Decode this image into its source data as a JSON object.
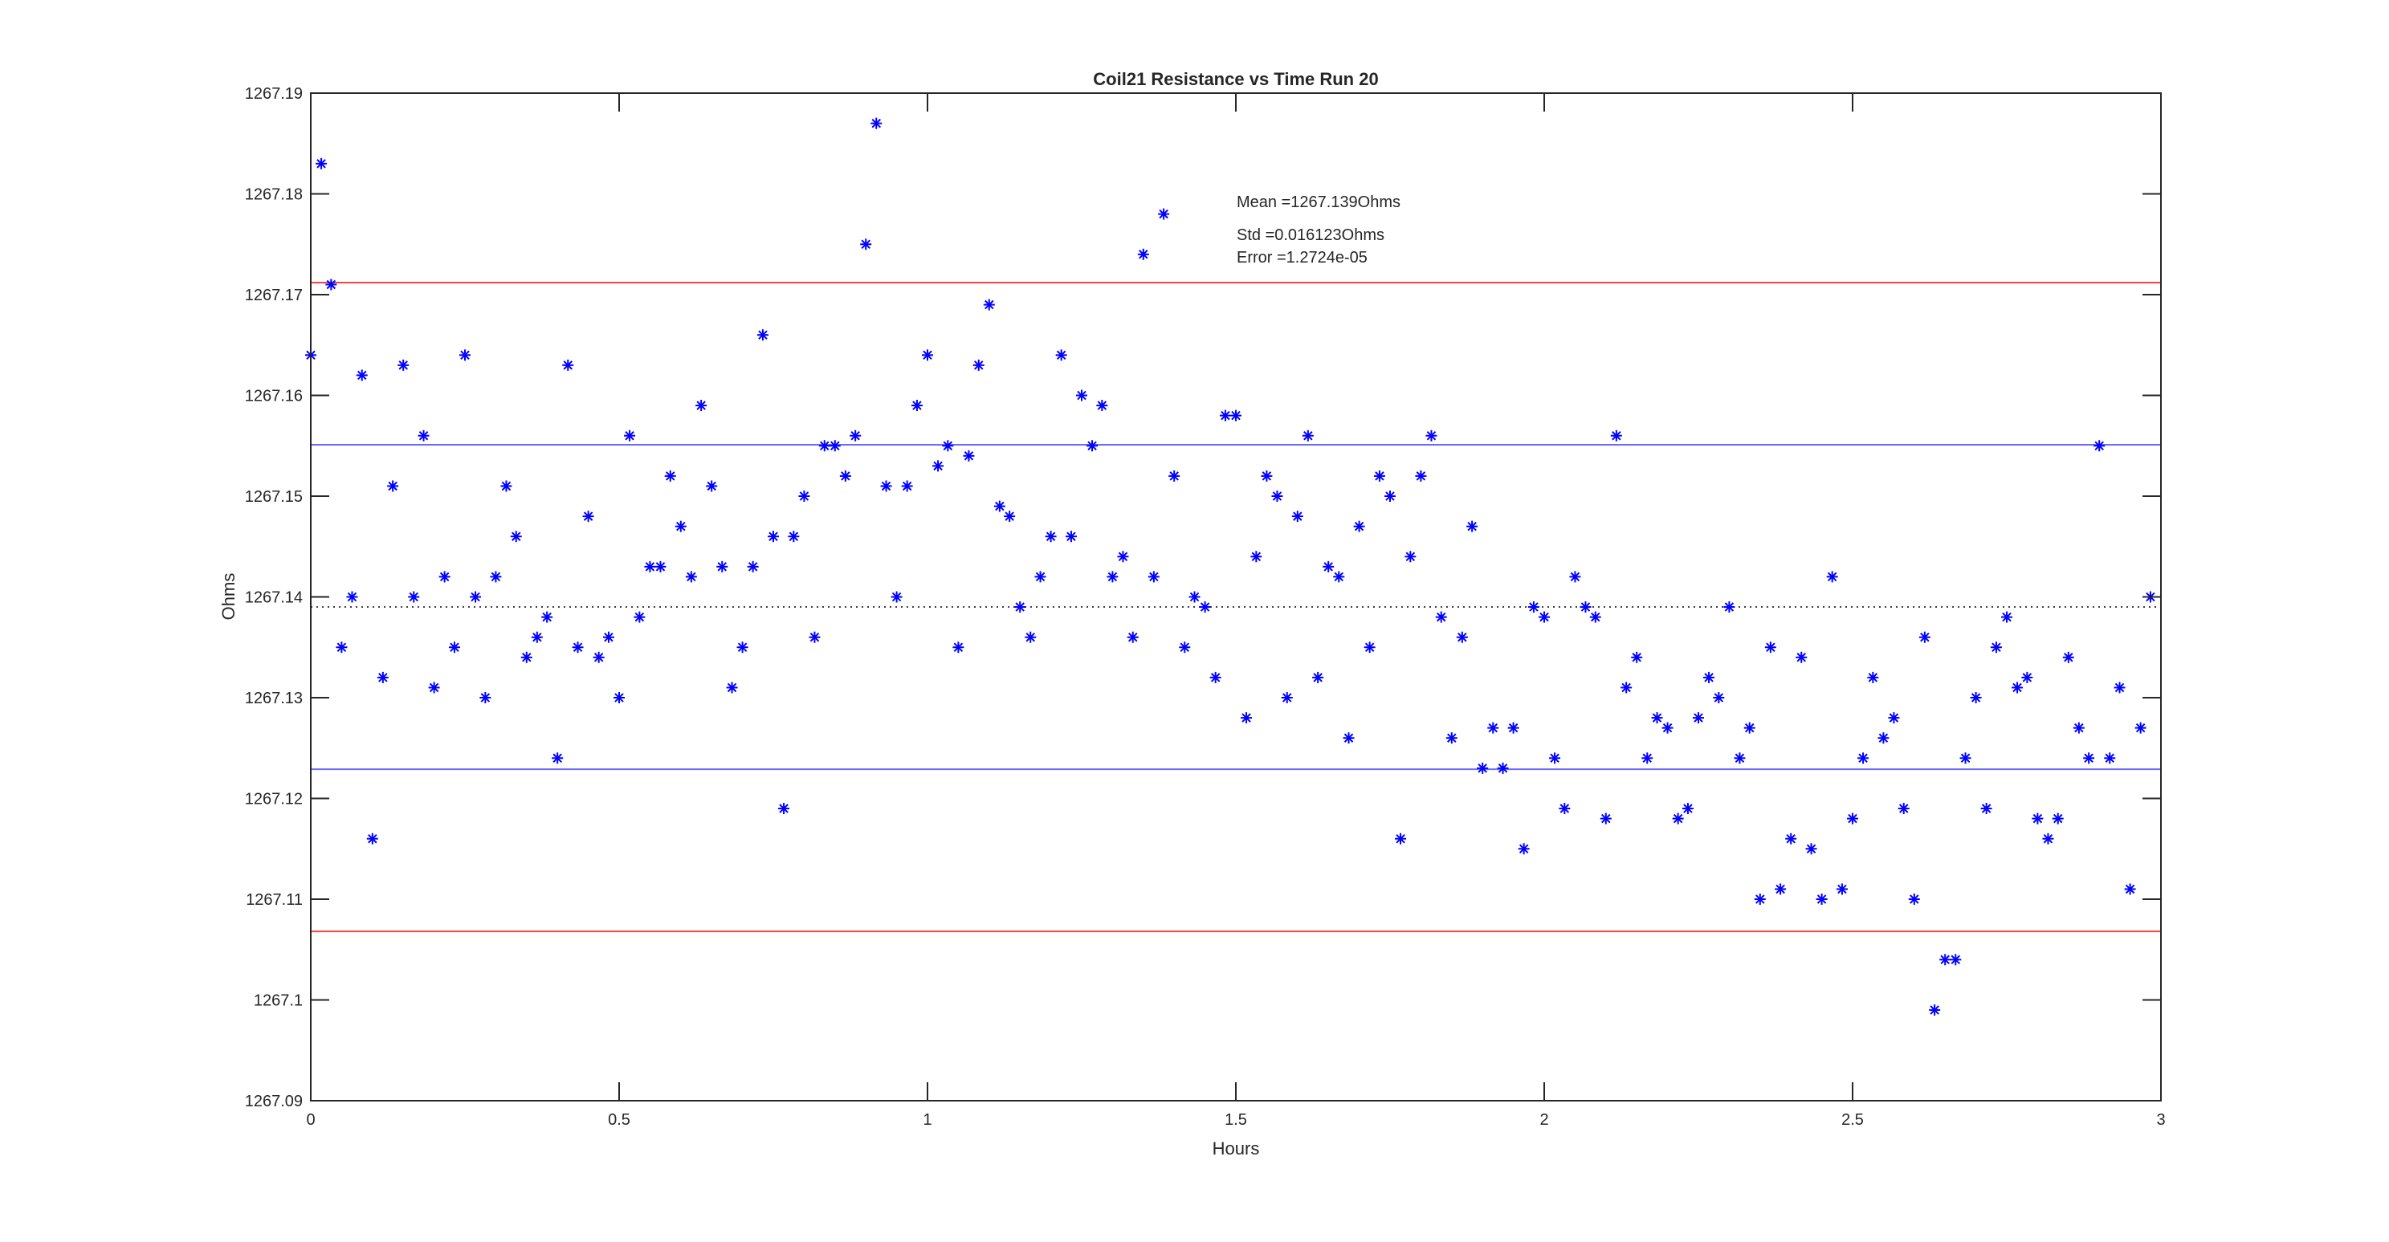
{
  "chart_data": {
    "type": "scatter",
    "title": "Coil21 Resistance vs Time Run 20",
    "xlabel": "Hours",
    "ylabel": "Ohms",
    "xlim": [
      0,
      3
    ],
    "ylim": [
      1267.09,
      1267.19
    ],
    "xticks": [
      "0",
      "0.5",
      "1",
      "1.5",
      "2",
      "2.5",
      "3"
    ],
    "xtick_values": [
      0,
      0.5,
      1,
      1.5,
      2,
      2.5,
      3
    ],
    "yticks": [
      "1267.09",
      "1267.1",
      "1267.11",
      "1267.12",
      "1267.13",
      "1267.14",
      "1267.15",
      "1267.16",
      "1267.17",
      "1267.18",
      "1267.19"
    ],
    "ytick_values": [
      1267.09,
      1267.1,
      1267.11,
      1267.12,
      1267.13,
      1267.14,
      1267.15,
      1267.16,
      1267.17,
      1267.18,
      1267.19
    ],
    "grid": false,
    "marker": "asterisk",
    "marker_color": "#0000ff",
    "annotations": [
      "Mean =1267.139Ohms",
      "Std =0.016123Ohms",
      "Error =1.2724e-05"
    ],
    "reference_lines": [
      {
        "kind": "mean",
        "y": 1267.139,
        "color": "#000000",
        "style": "dotted"
      },
      {
        "kind": "mean+std",
        "y": 1267.1551,
        "color": "#6b6bff",
        "style": "solid"
      },
      {
        "kind": "mean-std",
        "y": 1267.1229,
        "color": "#6b6bff",
        "style": "solid"
      },
      {
        "kind": "mean+2std",
        "y": 1267.1712,
        "color": "#ff4040",
        "style": "solid"
      },
      {
        "kind": "mean-2std",
        "y": 1267.1068,
        "color": "#ff4040",
        "style": "solid"
      }
    ],
    "x": [
      0,
      0.017,
      0.033,
      0.05,
      0.067,
      0.083,
      0.1,
      0.117,
      0.133,
      0.15,
      0.167,
      0.183,
      0.2,
      0.217,
      0.233,
      0.25,
      0.267,
      0.283,
      0.3,
      0.317,
      0.333,
      0.35,
      0.367,
      0.383,
      0.4,
      0.417,
      0.433,
      0.45,
      0.467,
      0.483,
      0.5,
      0.517,
      0.533,
      0.55,
      0.567,
      0.583,
      0.6,
      0.617,
      0.633,
      0.65,
      0.667,
      0.683,
      0.7,
      0.717,
      0.733,
      0.75,
      0.767,
      0.783,
      0.8,
      0.817,
      0.833,
      0.85,
      0.867,
      0.883,
      0.9,
      0.917,
      0.933,
      0.95,
      0.967,
      0.983,
      1,
      1.017,
      1.033,
      1.05,
      1.067,
      1.083,
      1.1,
      1.117,
      1.133,
      1.15,
      1.167,
      1.183,
      1.2,
      1.217,
      1.233,
      1.25,
      1.267,
      1.283,
      1.3,
      1.317,
      1.333,
      1.35,
      1.367,
      1.383,
      1.4,
      1.417,
      1.433,
      1.45,
      1.467,
      1.483,
      1.5,
      1.517,
      1.533,
      1.55,
      1.567,
      1.583,
      1.6,
      1.617,
      1.633,
      1.65,
      1.667,
      1.683,
      1.7,
      1.717,
      1.733,
      1.75,
      1.767,
      1.783,
      1.8,
      1.817,
      1.833,
      1.85,
      1.867,
      1.883,
      1.9,
      1.917,
      1.933,
      1.95,
      1.967,
      1.983,
      2,
      2.017,
      2.033,
      2.05,
      2.067,
      2.083,
      2.1,
      2.117,
      2.133,
      2.15,
      2.167,
      2.183,
      2.2,
      2.217,
      2.233,
      2.25,
      2.267,
      2.283,
      2.3,
      2.317,
      2.333,
      2.35,
      2.367,
      2.383,
      2.4,
      2.417,
      2.433,
      2.45,
      2.467,
      2.483,
      2.5,
      2.517,
      2.533,
      2.55,
      2.567,
      2.583,
      2.6,
      2.617,
      2.633,
      2.65,
      2.667,
      2.683,
      2.7,
      2.717,
      2.733,
      2.75,
      2.767,
      2.783,
      2.8,
      2.817,
      2.833,
      2.85,
      2.867,
      2.883,
      2.9,
      2.917,
      2.933,
      2.95,
      2.967,
      2.983
    ],
    "y": [
      1267.164,
      1267.183,
      1267.171,
      1267.135,
      1267.14,
      1267.162,
      1267.116,
      1267.132,
      1267.151,
      1267.163,
      1267.14,
      1267.156,
      1267.131,
      1267.142,
      1267.135,
      1267.164,
      1267.14,
      1267.13,
      1267.142,
      1267.151,
      1267.146,
      1267.134,
      1267.136,
      1267.138,
      1267.124,
      1267.163,
      1267.135,
      1267.148,
      1267.134,
      1267.136,
      1267.13,
      1267.156,
      1267.138,
      1267.143,
      1267.143,
      1267.152,
      1267.147,
      1267.142,
      1267.159,
      1267.151,
      1267.143,
      1267.131,
      1267.135,
      1267.143,
      1267.166,
      1267.146,
      1267.119,
      1267.146,
      1267.15,
      1267.136,
      1267.155,
      1267.155,
      1267.152,
      1267.156,
      1267.175,
      1267.187,
      1267.151,
      1267.14,
      1267.151,
      1267.159,
      1267.164,
      1267.153,
      1267.155,
      1267.135,
      1267.154,
      1267.163,
      1267.169,
      1267.149,
      1267.148,
      1267.139,
      1267.136,
      1267.142,
      1267.146,
      1267.164,
      1267.146,
      1267.16,
      1267.155,
      1267.159,
      1267.142,
      1267.144,
      1267.136,
      1267.174,
      1267.142,
      1267.178,
      1267.152,
      1267.135,
      1267.14,
      1267.139,
      1267.132,
      1267.158,
      1267.158,
      1267.128,
      1267.144,
      1267.152,
      1267.15,
      1267.13,
      1267.148,
      1267.156,
      1267.132,
      1267.143,
      1267.142,
      1267.126,
      1267.147,
      1267.135,
      1267.152,
      1267.15,
      1267.116,
      1267.144,
      1267.152,
      1267.156,
      1267.138,
      1267.126,
      1267.136,
      1267.147,
      1267.123,
      1267.127,
      1267.123,
      1267.127,
      1267.115,
      1267.139,
      1267.138,
      1267.124,
      1267.119,
      1267.142,
      1267.139,
      1267.138,
      1267.118,
      1267.156,
      1267.131,
      1267.134,
      1267.124,
      1267.128,
      1267.127,
      1267.118,
      1267.119,
      1267.128,
      1267.132,
      1267.13,
      1267.139,
      1267.124,
      1267.127,
      1267.11,
      1267.135,
      1267.111,
      1267.116,
      1267.134,
      1267.115,
      1267.11,
      1267.142,
      1267.111,
      1267.118,
      1267.124,
      1267.132,
      1267.126,
      1267.128,
      1267.119,
      1267.11,
      1267.136,
      1267.099,
      1267.104,
      1267.104,
      1267.124,
      1267.13,
      1267.119,
      1267.135,
      1267.138,
      1267.131,
      1267.132,
      1267.118,
      1267.116,
      1267.118,
      1267.134,
      1267.127,
      1267.124,
      1267.155,
      1267.124,
      1267.131,
      1267.111,
      1267.127,
      1267.14
    ]
  }
}
